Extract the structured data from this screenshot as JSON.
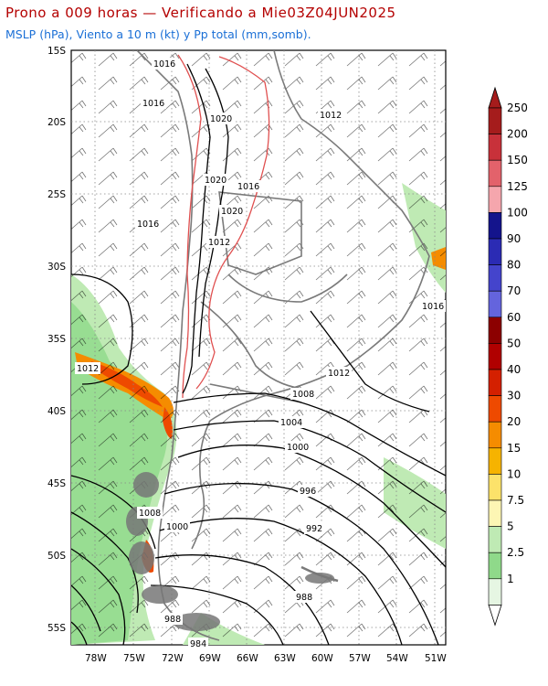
{
  "header": {
    "title": "Prono a 009 horas — Verificando a Mie03Z04JUN2025",
    "subtitle": "MSLP (hPa), Viento a 10 m (kt) y Pp total (mm,somb)."
  },
  "map": {
    "lat_labels": [
      "15S",
      "20S",
      "25S",
      "30S",
      "35S",
      "40S",
      "45S",
      "50S",
      "55S"
    ],
    "lon_labels": [
      "78W",
      "75W",
      "72W",
      "69W",
      "66W",
      "63W",
      "60W",
      "57W",
      "54W",
      "51W"
    ],
    "isobar_labels": [
      "1016",
      "1016",
      "1020",
      "1012",
      "1020",
      "1016",
      "1020",
      "1016",
      "1012",
      "1016",
      "1012",
      "1012",
      "1008",
      "1004",
      "1000",
      "996",
      "992",
      "1008",
      "1000",
      "988",
      "988",
      "984"
    ]
  },
  "legend": {
    "values": [
      "250",
      "200",
      "150",
      "125",
      "100",
      "90",
      "80",
      "70",
      "60",
      "50",
      "40",
      "30",
      "20",
      "15",
      "10",
      "7.5",
      "5",
      "2.5",
      "1"
    ],
    "colors": [
      "#a51c1c",
      "#c8313a",
      "#e3626b",
      "#f5a6ad",
      "#14148c",
      "#2b2bb4",
      "#4444cc",
      "#6464dd",
      "#8c0000",
      "#b00000",
      "#d42000",
      "#ee4a00",
      "#f58c00",
      "#f6b300",
      "#fce26a",
      "#fdf6b4",
      "#bfeab4",
      "#8fd98a",
      "#e6f6e3"
    ]
  }
}
